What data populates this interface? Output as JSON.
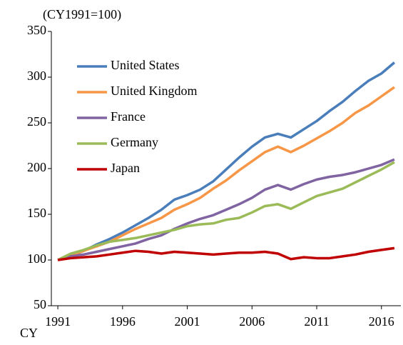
{
  "chart_data": {
    "type": "line",
    "title": "(CY1991=100)",
    "x_label": "CY",
    "x": [
      1991,
      1992,
      1993,
      1994,
      1995,
      1996,
      1997,
      1998,
      1999,
      2000,
      2001,
      2002,
      2003,
      2004,
      2005,
      2006,
      2007,
      2008,
      2009,
      2010,
      2011,
      2012,
      2013,
      2014,
      2015,
      2016,
      2017
    ],
    "series": [
      {
        "name": "United States",
        "color": "#4a7ebb",
        "values": [
          100,
          104,
          110,
          117,
          123,
          130,
          138,
          146,
          155,
          166,
          171,
          177,
          186,
          199,
          212,
          224,
          234,
          238,
          234,
          243,
          252,
          263,
          273,
          285,
          296,
          304,
          316
        ]
      },
      {
        "name": "United Kingdom",
        "color": "#f79646",
        "values": [
          100,
          105,
          110,
          115,
          120,
          127,
          134,
          140,
          146,
          155,
          161,
          168,
          178,
          187,
          198,
          208,
          218,
          224,
          218,
          225,
          233,
          241,
          250,
          261,
          269,
          279,
          289
        ]
      },
      {
        "name": "France",
        "color": "#8064a2",
        "values": [
          100,
          104,
          106,
          109,
          112,
          115,
          118,
          123,
          127,
          134,
          140,
          145,
          149,
          155,
          161,
          168,
          177,
          182,
          177,
          183,
          188,
          191,
          193,
          196,
          200,
          204,
          210
        ]
      },
      {
        "name": "Germany",
        "color": "#9bbb59",
        "values": [
          100,
          107,
          111,
          116,
          120,
          122,
          124,
          127,
          130,
          133,
          137,
          139,
          140,
          144,
          146,
          152,
          159,
          161,
          156,
          163,
          170,
          174,
          178,
          185,
          192,
          199,
          207
        ]
      },
      {
        "name": "Japan",
        "color": "#c00000",
        "values": [
          100,
          102,
          103,
          104,
          106,
          108,
          110,
          109,
          107,
          109,
          108,
          107,
          106,
          107,
          108,
          108,
          109,
          107,
          101,
          103,
          102,
          102,
          104,
          106,
          109,
          111,
          113
        ]
      }
    ],
    "xlim": [
      1990.5,
      2017.5
    ],
    "xticks": [
      1991,
      1996,
      2001,
      2006,
      2011,
      2016
    ],
    "ylim": [
      50,
      350
    ],
    "yticks": [
      50,
      100,
      150,
      200,
      250,
      300,
      350
    ],
    "legend": "upper left"
  }
}
